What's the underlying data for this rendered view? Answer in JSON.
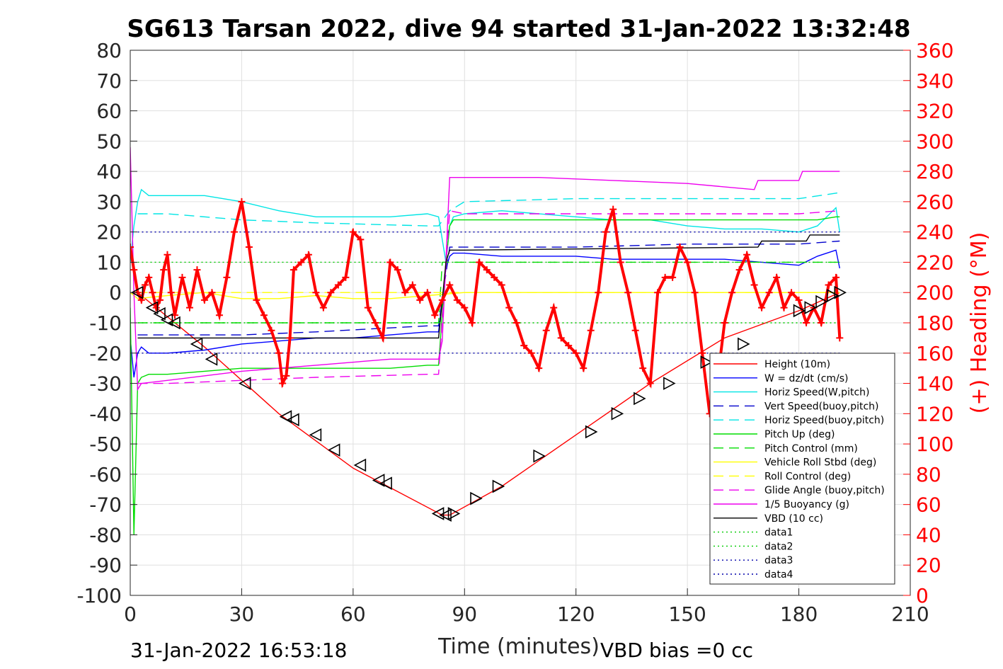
{
  "header": {
    "title": "SG613 Tarsan 2022, dive 94 started 31-Jan-2022 13:32:48"
  },
  "footer": {
    "timestamp": "31-Jan-2022 16:53:18",
    "vbd_bias": "VBD bias =0 cc"
  },
  "colors": {
    "heading": "#ff0000",
    "height": "#ff0000",
    "w": "#0000ff",
    "horiz_speed": "#00e5e5",
    "vert_speed_buoy": "#0000cc",
    "pitch": "#00dd00",
    "roll": "#ffff00",
    "glide": "#ee00ee",
    "buoyancy": "#ee00ee",
    "vbd": "#000000",
    "data_green": "#00cc00",
    "data_blue": "#0000aa",
    "grid": "#e0e0e0"
  },
  "chart_data": {
    "type": "line",
    "title": "SG613 Tarsan 2022, dive 94 started 31-Jan-2022 13:32:48",
    "xlabel": "Time (minutes)",
    "ylabel": "",
    "y2label": "(+) Heading (°M)",
    "xlim": [
      0,
      210
    ],
    "ylim": [
      -100,
      80
    ],
    "y2lim": [
      0,
      360
    ],
    "grid": true,
    "legend_position": "bottom-right",
    "xticks": [
      0,
      30,
      60,
      90,
      120,
      150,
      180,
      210
    ],
    "yticks": [
      -100,
      -90,
      -80,
      -70,
      -60,
      -50,
      -40,
      -30,
      -20,
      -10,
      0,
      10,
      20,
      30,
      40,
      50,
      60,
      70,
      80
    ],
    "y2ticks": [
      0,
      20,
      40,
      60,
      80,
      100,
      120,
      140,
      160,
      180,
      200,
      220,
      240,
      260,
      280,
      300,
      320,
      340,
      360
    ],
    "series": [
      {
        "key": "height",
        "name": "Height (10m)",
        "style": "solid",
        "x": [
          1,
          2,
          20,
          40,
          60,
          84,
          86,
          100,
          120,
          140,
          160,
          180,
          191
        ],
        "y": [
          0,
          0,
          -18,
          -40,
          -58,
          -73.5,
          -73.5,
          -64,
          -47,
          -30,
          -15,
          -6,
          0
        ]
      },
      {
        "key": "w",
        "name": "W = dz/dt (cm/s)",
        "style": "solid",
        "x": [
          0,
          1,
          2,
          3,
          5,
          10,
          20,
          30,
          40,
          50,
          60,
          70,
          80,
          83,
          85,
          86,
          87,
          90,
          100,
          110,
          120,
          130,
          140,
          150,
          160,
          170,
          180,
          185,
          190,
          191
        ],
        "y": [
          -15,
          -28,
          -20,
          -18,
          -20,
          -20,
          -19,
          -17,
          -16,
          -15,
          -15,
          -14,
          -13,
          -13,
          8,
          12,
          13,
          13,
          12,
          12,
          12,
          11,
          11,
          11,
          11,
          10,
          9,
          12,
          14,
          8
        ]
      },
      {
        "key": "horiz",
        "name": "Horiz Speed(W,pitch)",
        "style": "solid",
        "x": [
          0,
          1,
          2,
          3,
          5,
          10,
          20,
          30,
          40,
          50,
          60,
          70,
          80,
          83,
          85,
          86,
          87,
          90,
          100,
          110,
          120,
          130,
          140,
          150,
          160,
          170,
          180,
          185,
          190,
          191
        ],
        "y": [
          10,
          22,
          30,
          34,
          32,
          32,
          32,
          30,
          27,
          25,
          25,
          25,
          26,
          25,
          10,
          22,
          25,
          26,
          27,
          26,
          25,
          24,
          24,
          22,
          21,
          21,
          20,
          22,
          28,
          20
        ]
      },
      {
        "key": "vert_buoy",
        "name": "Vert Speed(buoy,pitch)",
        "style": "dashed",
        "x": [
          2,
          10,
          30,
          50,
          80,
          83,
          86,
          90,
          120,
          150,
          180,
          191
        ],
        "y": [
          -14,
          -14,
          -14,
          -13,
          -11,
          -11,
          15,
          15,
          15,
          16,
          16,
          17
        ]
      },
      {
        "key": "horiz_buoy",
        "name": "Horiz Speed(buoy,pitch)",
        "style": "dashed",
        "x": [
          2,
          10,
          30,
          50,
          80,
          83,
          86,
          90,
          120,
          150,
          180,
          191
        ],
        "y": [
          26,
          26,
          24,
          23,
          22,
          22,
          27,
          30,
          31,
          31,
          31,
          33
        ]
      },
      {
        "key": "pitch",
        "name": "Pitch Up (deg)",
        "style": "solid",
        "x": [
          0,
          1,
          2,
          3,
          5,
          10,
          20,
          30,
          40,
          50,
          60,
          70,
          80,
          83,
          85,
          86,
          87,
          90,
          100,
          110,
          120,
          130,
          140,
          150,
          160,
          170,
          180,
          185,
          190,
          191
        ],
        "y": [
          -5,
          -80,
          -30,
          -28,
          -27,
          -27,
          -26,
          -25,
          -25,
          -25,
          -25,
          -25,
          -24,
          -24,
          10,
          22,
          24,
          24,
          24,
          24,
          24,
          24,
          24,
          24,
          24,
          24,
          24,
          24,
          25,
          25
        ]
      },
      {
        "key": "pitch_ctrl",
        "name": "Pitch Control (mm)",
        "style": "dashed",
        "x": [
          2,
          83,
          84,
          191
        ],
        "y": [
          -10,
          -10,
          10,
          10
        ]
      },
      {
        "key": "roll",
        "name": "Vehicle Roll Stbd (deg)",
        "style": "solid",
        "x": [
          0,
          2,
          10,
          20,
          30,
          40,
          50,
          60,
          70,
          80,
          90,
          100,
          110,
          120,
          130,
          140,
          150,
          160,
          170,
          180,
          191
        ],
        "y": [
          0,
          -2,
          -1,
          0,
          -2,
          -2,
          -1,
          -2,
          -2,
          -1,
          0,
          0,
          0,
          0,
          0,
          0,
          0,
          0,
          0,
          0,
          0
        ]
      },
      {
        "key": "roll_ctrl",
        "name": "Roll Control (deg)",
        "style": "dashed",
        "x": [
          2,
          30,
          60,
          90,
          120,
          150,
          180,
          191
        ],
        "y": [
          0,
          0,
          0,
          0,
          0,
          0,
          0,
          0
        ]
      },
      {
        "key": "glide",
        "name": "Glide Angle (buoy,pitch)",
        "style": "dashed",
        "x": [
          2,
          10,
          30,
          50,
          80,
          83,
          86,
          90,
          120,
          150,
          180,
          191
        ],
        "y": [
          -30,
          -30,
          -29,
          -28,
          -27,
          -27,
          27,
          26,
          26,
          26,
          26,
          27
        ]
      },
      {
        "key": "buoyancy",
        "name": "1/5 Buoyancy (g)",
        "style": "solid",
        "x": [
          0,
          1,
          2,
          3,
          10,
          30,
          50,
          70,
          83,
          84,
          86,
          90,
          110,
          130,
          150,
          168,
          169,
          180,
          181,
          191
        ],
        "y": [
          48,
          0,
          -32,
          -30,
          -29,
          -26,
          -24,
          -22,
          -22,
          -16,
          38,
          38,
          38,
          37,
          36,
          34,
          37,
          37,
          40,
          40
        ]
      },
      {
        "key": "vbd",
        "name": "VBD (10 cc)",
        "style": "solid",
        "x": [
          2,
          83,
          85,
          86,
          90,
          169,
          170,
          182,
          183,
          191
        ],
        "y": [
          -15,
          -15,
          10,
          14,
          14,
          15,
          17,
          17,
          19,
          19
        ]
      },
      {
        "key": "data1",
        "name": "data1",
        "style": "dotted",
        "x": [
          2,
          191
        ],
        "y": [
          -10,
          -10
        ]
      },
      {
        "key": "data2",
        "name": "data2",
        "style": "dotted",
        "x": [
          2,
          191
        ],
        "y": [
          10,
          10
        ]
      },
      {
        "key": "data3",
        "name": "data3",
        "style": "dotted",
        "x": [
          2,
          191
        ],
        "y": [
          -20,
          -20
        ]
      },
      {
        "key": "data4",
        "name": "data4",
        "style": "dotted",
        "x": [
          2,
          191
        ],
        "y": [
          20,
          20
        ]
      }
    ],
    "heading_series": {
      "axis": "right",
      "x": [
        0,
        1,
        2,
        3,
        4,
        5,
        6,
        7,
        8,
        9,
        10,
        11,
        12,
        14,
        16,
        18,
        20,
        22,
        24,
        26,
        28,
        30,
        32,
        34,
        36,
        38,
        40,
        41,
        42,
        43,
        44,
        46,
        48,
        50,
        52,
        54,
        56,
        58,
        60,
        62,
        64,
        66,
        68,
        70,
        72,
        74,
        76,
        78,
        80,
        82,
        84,
        86,
        88,
        90,
        92,
        94,
        96,
        98,
        100,
        102,
        104,
        106,
        108,
        110,
        112,
        114,
        116,
        118,
        120,
        122,
        124,
        126,
        128,
        130,
        132,
        134,
        136,
        138,
        140,
        142,
        144,
        146,
        148,
        150,
        152,
        154,
        156,
        158,
        160,
        162,
        164,
        166,
        168,
        170,
        172,
        174,
        176,
        178,
        180,
        182,
        184,
        186,
        188,
        190,
        191
      ],
      "y": [
        230,
        215,
        200,
        195,
        205,
        210,
        200,
        190,
        195,
        215,
        225,
        200,
        185,
        210,
        190,
        215,
        195,
        200,
        185,
        210,
        240,
        260,
        230,
        195,
        185,
        175,
        160,
        140,
        145,
        170,
        215,
        220,
        225,
        200,
        190,
        200,
        205,
        210,
        240,
        235,
        190,
        180,
        170,
        220,
        215,
        200,
        205,
        195,
        200,
        185,
        195,
        205,
        195,
        190,
        180,
        220,
        215,
        210,
        205,
        190,
        180,
        165,
        160,
        150,
        175,
        190,
        170,
        165,
        160,
        150,
        175,
        200,
        240,
        255,
        220,
        200,
        175,
        150,
        140,
        200,
        210,
        210,
        230,
        220,
        200,
        160,
        120,
        140,
        180,
        200,
        215,
        225,
        205,
        190,
        200,
        210,
        190,
        200,
        195,
        180,
        190,
        180,
        205,
        210,
        170
      ]
    },
    "markers": {
      "descent_triangles": {
        "x": [
          2,
          6,
          8,
          10,
          12,
          18,
          22,
          31,
          42,
          44,
          50,
          55,
          62,
          67,
          69,
          83,
          85
        ],
        "y": [
          0,
          -5,
          -7,
          -9,
          -10,
          -17,
          -22,
          -30,
          -41,
          -42,
          -47,
          -52,
          -57,
          -62,
          -63,
          -73,
          -73.5
        ]
      },
      "ascent_triangles": {
        "x": [
          87,
          93,
          99,
          110,
          124,
          131,
          137,
          145,
          155,
          165,
          180,
          183,
          186,
          189,
          191
        ],
        "y": [
          -73,
          -68,
          -64,
          -54,
          -46,
          -40,
          -35,
          -30,
          -23,
          -17,
          -6,
          -5,
          -3,
          -1,
          0
        ]
      }
    }
  }
}
